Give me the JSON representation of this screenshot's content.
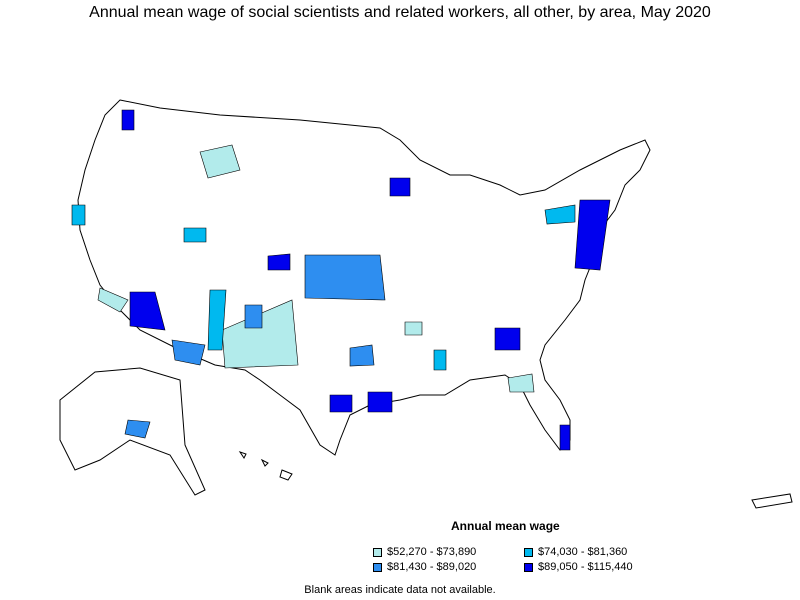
{
  "title": "Annual mean wage of social scientists and related workers, all other, by area, May 2020",
  "legend": {
    "title": "Annual mean wage",
    "items": [
      {
        "label": "$52,270 - $73,890",
        "color": "#b2ebeb"
      },
      {
        "label": "$74,030 - $81,360",
        "color": "#00b9ef"
      },
      {
        "label": "$81,430 - $89,020",
        "color": "#2e8ef0"
      },
      {
        "label": "$89,050 - $115,440",
        "color": "#0000ee"
      }
    ]
  },
  "footnote": "Blank areas indicate data not available.",
  "colors": {
    "land": "#ffffff",
    "border": "#000000"
  }
}
